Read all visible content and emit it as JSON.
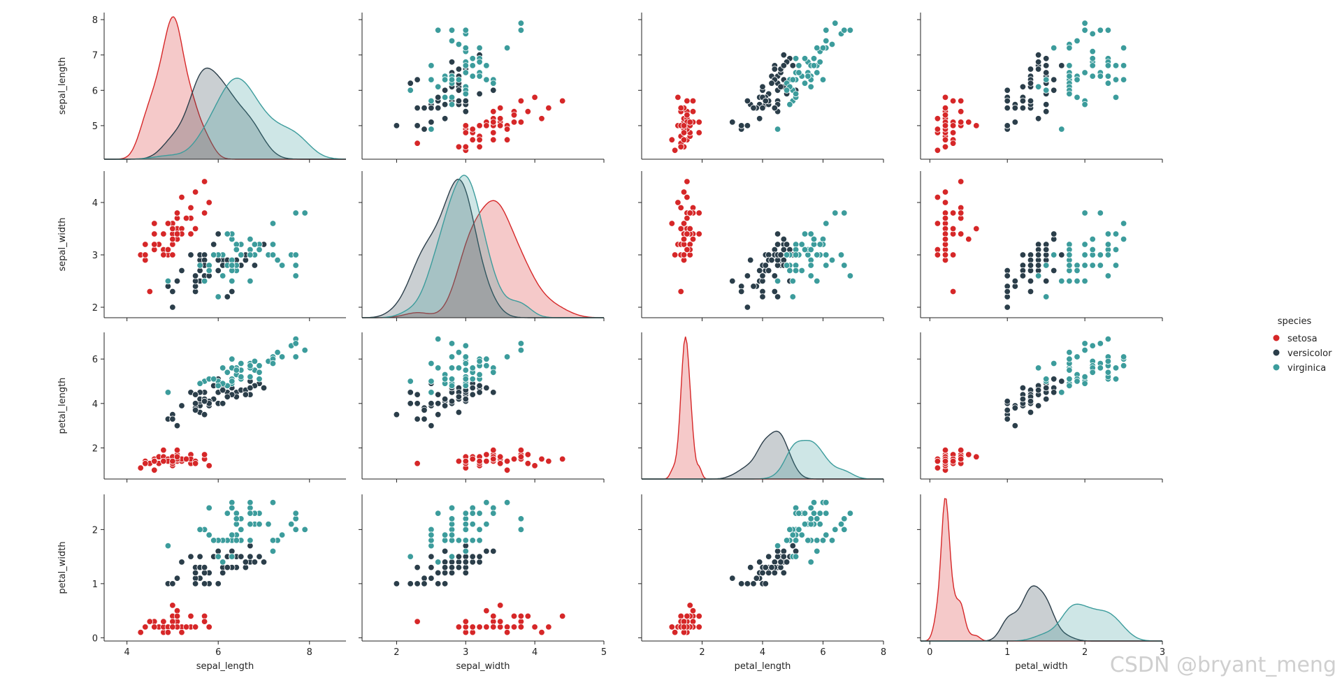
{
  "chart_data": {
    "type": "scatter",
    "title": "",
    "variables": [
      "sepal_length",
      "sepal_width",
      "petal_length",
      "petal_width"
    ],
    "axis_ranges": {
      "sepal_length": [
        3.5,
        9.0
      ],
      "sepal_width": [
        1.5,
        5.0
      ],
      "petal_length": [
        0.0,
        8.0
      ],
      "petal_width": [
        -0.1,
        3.0
      ]
    },
    "kde_density_ranges": {
      "sepal_length": 1.25,
      "sepal_width": 1.25,
      "petal_length": 2.6,
      "petal_width": 7.5
    },
    "axis_ranges_display": {
      "sepal_length": [
        4.2,
        8.1
      ],
      "sepal_width": [
        1.85,
        4.55
      ],
      "petal_length": [
        0.6,
        7.2
      ],
      "petal_width": [
        -0.05,
        2.65
      ]
    },
    "ticks": {
      "sepal_length_y": [
        "5",
        "6",
        "7",
        "8"
      ],
      "sepal_width_y": [
        "2",
        "3",
        "4"
      ],
      "petal_length_y": [
        "2",
        "4",
        "6"
      ],
      "petal_width_y": [
        "0",
        "1",
        "2"
      ],
      "sepal_length_x": [
        "4",
        "6",
        "8"
      ],
      "sepal_width_x": [
        "2",
        "3",
        "4",
        "5"
      ],
      "petal_length_x": [
        "2",
        "4",
        "6",
        "8"
      ],
      "petal_width_x": [
        "0",
        "1",
        "2",
        "3"
      ]
    },
    "tick_values": {
      "sepal_length_y": [
        5,
        6,
        7,
        8
      ],
      "sepal_width_y": [
        2,
        3,
        4
      ],
      "petal_length_y": [
        2,
        4,
        6
      ],
      "petal_width_y": [
        0,
        1,
        2
      ],
      "sepal_length_x": [
        4,
        6,
        8
      ],
      "sepal_width_x": [
        2,
        3,
        4,
        5
      ],
      "petal_length_x": [
        2,
        4,
        6,
        8
      ],
      "petal_width_x": [
        0,
        1,
        2,
        3
      ]
    },
    "legend": {
      "title": "species",
      "entries": [
        {
          "label": "setosa",
          "color": "#d62728"
        },
        {
          "label": "versicolor",
          "color": "#2b3e4a"
        },
        {
          "label": "virginica",
          "color": "#3c9c9c"
        }
      ]
    },
    "series": [
      {
        "name": "setosa",
        "color": "#d62728",
        "points": [
          [
            5.1,
            3.5,
            1.4,
            0.2
          ],
          [
            4.9,
            3.0,
            1.4,
            0.2
          ],
          [
            4.7,
            3.2,
            1.3,
            0.2
          ],
          [
            4.6,
            3.1,
            1.5,
            0.2
          ],
          [
            5.0,
            3.6,
            1.4,
            0.2
          ],
          [
            5.4,
            3.9,
            1.7,
            0.4
          ],
          [
            4.6,
            3.4,
            1.4,
            0.3
          ],
          [
            5.0,
            3.4,
            1.5,
            0.2
          ],
          [
            4.4,
            2.9,
            1.4,
            0.2
          ],
          [
            4.9,
            3.1,
            1.5,
            0.1
          ],
          [
            5.4,
            3.7,
            1.5,
            0.2
          ],
          [
            4.8,
            3.4,
            1.6,
            0.2
          ],
          [
            4.8,
            3.0,
            1.4,
            0.1
          ],
          [
            4.3,
            3.0,
            1.1,
            0.1
          ],
          [
            5.8,
            4.0,
            1.2,
            0.2
          ],
          [
            5.7,
            4.4,
            1.5,
            0.4
          ],
          [
            5.4,
            3.9,
            1.3,
            0.4
          ],
          [
            5.1,
            3.5,
            1.4,
            0.3
          ],
          [
            5.7,
            3.8,
            1.7,
            0.3
          ],
          [
            5.1,
            3.8,
            1.5,
            0.3
          ],
          [
            5.4,
            3.4,
            1.7,
            0.2
          ],
          [
            5.1,
            3.7,
            1.5,
            0.4
          ],
          [
            4.6,
            3.6,
            1.0,
            0.2
          ],
          [
            5.1,
            3.3,
            1.7,
            0.5
          ],
          [
            4.8,
            3.4,
            1.9,
            0.2
          ],
          [
            5.0,
            3.0,
            1.6,
            0.2
          ],
          [
            5.0,
            3.4,
            1.6,
            0.4
          ],
          [
            5.2,
            3.5,
            1.5,
            0.2
          ],
          [
            5.2,
            3.4,
            1.4,
            0.2
          ],
          [
            4.7,
            3.2,
            1.6,
            0.2
          ],
          [
            4.8,
            3.1,
            1.6,
            0.2
          ],
          [
            5.4,
            3.4,
            1.5,
            0.4
          ],
          [
            5.2,
            4.1,
            1.5,
            0.1
          ],
          [
            5.5,
            4.2,
            1.4,
            0.2
          ],
          [
            4.9,
            3.1,
            1.5,
            0.2
          ],
          [
            5.0,
            3.2,
            1.2,
            0.2
          ],
          [
            5.5,
            3.5,
            1.3,
            0.2
          ],
          [
            4.9,
            3.6,
            1.4,
            0.1
          ],
          [
            4.4,
            3.0,
            1.3,
            0.2
          ],
          [
            5.1,
            3.4,
            1.5,
            0.2
          ],
          [
            5.0,
            3.5,
            1.3,
            0.3
          ],
          [
            4.5,
            2.3,
            1.3,
            0.3
          ],
          [
            4.4,
            3.2,
            1.3,
            0.2
          ],
          [
            5.0,
            3.5,
            1.6,
            0.6
          ],
          [
            5.1,
            3.8,
            1.9,
            0.4
          ],
          [
            4.8,
            3.0,
            1.4,
            0.3
          ],
          [
            5.1,
            3.8,
            1.6,
            0.2
          ],
          [
            4.6,
            3.2,
            1.4,
            0.2
          ],
          [
            5.3,
            3.7,
            1.5,
            0.2
          ],
          [
            5.0,
            3.3,
            1.4,
            0.2
          ]
        ]
      },
      {
        "name": "versicolor",
        "color": "#2b3e4a",
        "points": [
          [
            7.0,
            3.2,
            4.7,
            1.4
          ],
          [
            6.4,
            3.2,
            4.5,
            1.5
          ],
          [
            6.9,
            3.1,
            4.9,
            1.5
          ],
          [
            5.5,
            2.3,
            4.0,
            1.3
          ],
          [
            6.5,
            2.8,
            4.6,
            1.5
          ],
          [
            5.7,
            2.8,
            4.5,
            1.3
          ],
          [
            6.3,
            3.3,
            4.7,
            1.6
          ],
          [
            4.9,
            2.4,
            3.3,
            1.0
          ],
          [
            6.6,
            2.9,
            4.6,
            1.3
          ],
          [
            5.2,
            2.7,
            3.9,
            1.4
          ],
          [
            5.0,
            2.0,
            3.5,
            1.0
          ],
          [
            5.9,
            3.0,
            4.2,
            1.5
          ],
          [
            6.0,
            2.2,
            4.0,
            1.0
          ],
          [
            6.1,
            2.9,
            4.7,
            1.4
          ],
          [
            5.6,
            2.9,
            3.6,
            1.3
          ],
          [
            6.7,
            3.1,
            4.4,
            1.4
          ],
          [
            5.6,
            3.0,
            4.5,
            1.5
          ],
          [
            5.8,
            2.7,
            4.1,
            1.0
          ],
          [
            6.2,
            2.2,
            4.5,
            1.5
          ],
          [
            5.6,
            2.5,
            3.9,
            1.1
          ],
          [
            5.9,
            3.2,
            4.8,
            1.8
          ],
          [
            6.1,
            2.8,
            4.0,
            1.3
          ],
          [
            6.3,
            2.5,
            4.9,
            1.5
          ],
          [
            6.1,
            2.8,
            4.7,
            1.2
          ],
          [
            6.4,
            2.9,
            4.3,
            1.3
          ],
          [
            6.6,
            3.0,
            4.4,
            1.4
          ],
          [
            6.8,
            2.8,
            4.8,
            1.4
          ],
          [
            6.7,
            3.0,
            5.0,
            1.7
          ],
          [
            6.0,
            2.9,
            4.5,
            1.5
          ],
          [
            5.7,
            2.6,
            3.5,
            1.0
          ],
          [
            5.5,
            2.4,
            3.8,
            1.1
          ],
          [
            5.5,
            2.4,
            3.7,
            1.0
          ],
          [
            5.8,
            2.7,
            3.9,
            1.2
          ],
          [
            6.0,
            2.7,
            5.1,
            1.6
          ],
          [
            5.4,
            3.0,
            4.5,
            1.5
          ],
          [
            6.0,
            3.4,
            4.5,
            1.6
          ],
          [
            6.7,
            3.1,
            4.7,
            1.5
          ],
          [
            6.3,
            2.3,
            4.4,
            1.3
          ],
          [
            5.6,
            3.0,
            4.1,
            1.3
          ],
          [
            5.5,
            2.5,
            4.0,
            1.3
          ],
          [
            5.5,
            2.6,
            4.4,
            1.2
          ],
          [
            6.1,
            3.0,
            4.6,
            1.4
          ],
          [
            5.8,
            2.6,
            4.0,
            1.2
          ],
          [
            5.0,
            2.3,
            3.3,
            1.0
          ],
          [
            5.6,
            2.7,
            4.2,
            1.3
          ],
          [
            5.7,
            3.0,
            4.2,
            1.2
          ],
          [
            5.7,
            2.9,
            4.2,
            1.3
          ],
          [
            6.2,
            2.9,
            4.3,
            1.3
          ],
          [
            5.1,
            2.5,
            3.0,
            1.1
          ],
          [
            5.7,
            2.8,
            4.1,
            1.3
          ]
        ]
      },
      {
        "name": "virginica",
        "color": "#3c9c9c",
        "points": [
          [
            6.3,
            3.3,
            6.0,
            2.5
          ],
          [
            5.8,
            2.7,
            5.1,
            1.9
          ],
          [
            7.1,
            3.0,
            5.9,
            2.1
          ],
          [
            6.3,
            2.9,
            5.6,
            1.8
          ],
          [
            6.5,
            3.0,
            5.8,
            2.2
          ],
          [
            7.6,
            3.0,
            6.6,
            2.1
          ],
          [
            4.9,
            2.5,
            4.5,
            1.7
          ],
          [
            7.3,
            2.9,
            6.3,
            1.8
          ],
          [
            6.7,
            2.5,
            5.8,
            1.8
          ],
          [
            7.2,
            3.6,
            6.1,
            2.5
          ],
          [
            6.5,
            3.2,
            5.1,
            2.0
          ],
          [
            6.4,
            2.7,
            5.3,
            1.9
          ],
          [
            6.8,
            3.0,
            5.5,
            2.1
          ],
          [
            5.7,
            2.5,
            5.0,
            2.0
          ],
          [
            5.8,
            2.8,
            5.1,
            2.4
          ],
          [
            6.4,
            3.2,
            5.3,
            2.3
          ],
          [
            6.5,
            3.0,
            5.5,
            1.8
          ],
          [
            7.7,
            3.8,
            6.7,
            2.2
          ],
          [
            7.7,
            2.6,
            6.9,
            2.3
          ],
          [
            6.0,
            2.2,
            5.0,
            1.5
          ],
          [
            6.9,
            3.2,
            5.7,
            2.3
          ],
          [
            5.6,
            2.8,
            4.9,
            2.0
          ],
          [
            7.7,
            2.8,
            6.7,
            2.0
          ],
          [
            6.3,
            2.7,
            4.9,
            1.8
          ],
          [
            6.7,
            3.3,
            5.7,
            2.1
          ],
          [
            7.2,
            3.2,
            6.0,
            1.8
          ],
          [
            6.2,
            2.8,
            4.8,
            1.8
          ],
          [
            6.1,
            3.0,
            4.9,
            1.8
          ],
          [
            6.4,
            2.8,
            5.6,
            2.1
          ],
          [
            7.2,
            3.0,
            5.8,
            1.6
          ],
          [
            7.4,
            2.8,
            6.1,
            1.9
          ],
          [
            7.9,
            3.8,
            6.4,
            2.0
          ],
          [
            6.4,
            2.8,
            5.6,
            2.2
          ],
          [
            6.3,
            2.8,
            5.1,
            1.5
          ],
          [
            6.1,
            2.6,
            5.6,
            1.4
          ],
          [
            7.7,
            3.0,
            6.1,
            2.3
          ],
          [
            6.3,
            3.4,
            5.6,
            2.4
          ],
          [
            6.4,
            3.1,
            5.5,
            1.8
          ],
          [
            6.0,
            3.0,
            4.8,
            1.8
          ],
          [
            6.9,
            3.1,
            5.4,
            2.1
          ],
          [
            6.7,
            3.1,
            5.6,
            2.4
          ],
          [
            6.9,
            3.1,
            5.1,
            2.3
          ],
          [
            5.8,
            2.7,
            5.1,
            1.9
          ],
          [
            6.8,
            3.2,
            5.9,
            2.3
          ],
          [
            6.7,
            3.3,
            5.7,
            2.5
          ],
          [
            6.7,
            3.0,
            5.2,
            2.3
          ],
          [
            6.3,
            2.5,
            5.0,
            1.9
          ],
          [
            6.5,
            3.0,
            5.2,
            2.0
          ],
          [
            6.2,
            3.4,
            5.4,
            2.3
          ],
          [
            5.9,
            3.0,
            5.1,
            1.8
          ]
        ]
      }
    ]
  },
  "watermark": "CSDN @bryant_meng"
}
